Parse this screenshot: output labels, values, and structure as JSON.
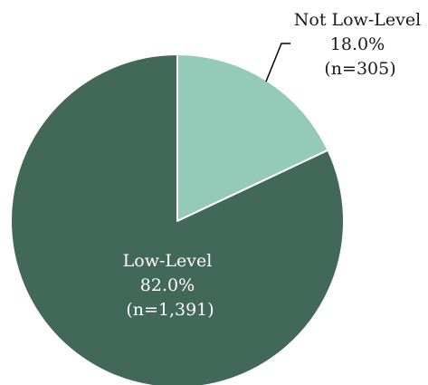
{
  "chart_data": {
    "type": "pie",
    "title": "",
    "slices": [
      {
        "key": "not-low-level",
        "label": "Not Low-Level",
        "value": 18.0,
        "percent_text": "18.0%",
        "count_text": "(n=305)",
        "color": "#93cbb8",
        "label_color": "#1a1a1a"
      },
      {
        "key": "low-level",
        "label": "Low-Level",
        "value": 82.0,
        "percent_text": "82.0%",
        "count_text": "(n=1,391)",
        "color": "#42685a",
        "label_color": "#ffffff"
      }
    ],
    "start_angle": "12 o'clock",
    "direction": "clockwise",
    "slice_border_color": "#ffffff"
  }
}
